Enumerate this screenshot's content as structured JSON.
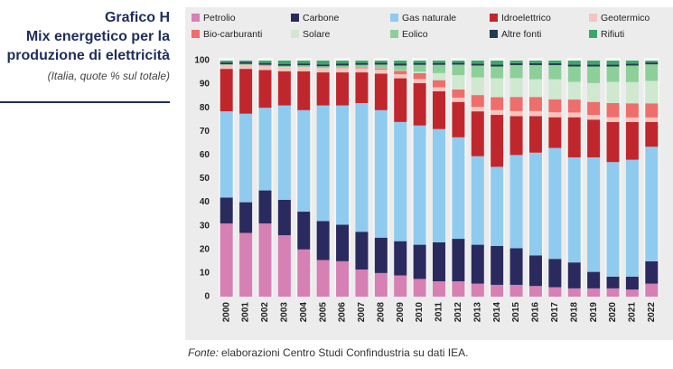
{
  "chart_data": {
    "type": "stacked_bar",
    "label": "Grafico H",
    "title": [
      "Mix energetico per la",
      "produzione di elettricità"
    ],
    "subtitle": "(Italia, quote % sul totale)",
    "source_label": "Fonte:",
    "source": "elaborazioni Centro Studi Confindustria su dati IEA.",
    "categories": [
      "2000",
      "2001",
      "2002",
      "2003",
      "2004",
      "2005",
      "2006",
      "2007",
      "2008",
      "2009",
      "2010",
      "2011",
      "2012",
      "2013",
      "2014",
      "2015",
      "2016",
      "2017",
      "2018",
      "2019",
      "2020",
      "2021",
      "2022"
    ],
    "ylim": [
      0,
      100
    ],
    "yticks": [
      0,
      10,
      20,
      30,
      40,
      50,
      60,
      70,
      80,
      90,
      100
    ],
    "series": [
      {
        "name": "Petrolio",
        "color": "#d680b4",
        "values": [
          31,
          27,
          31,
          26,
          20,
          15.5,
          15,
          11.5,
          10,
          9,
          7.5,
          6.5,
          6.5,
          5.5,
          5,
          5,
          4.5,
          4,
          3.5,
          3.5,
          3.5,
          3,
          5.5
        ]
      },
      {
        "name": "Carbone",
        "color": "#2b2a5e",
        "values": [
          11,
          13,
          14,
          15,
          16,
          16.5,
          15.5,
          16,
          15,
          14.5,
          14.5,
          16.5,
          18,
          16.5,
          16.5,
          15.5,
          13,
          12,
          11,
          7,
          5,
          5.5,
          9.5
        ]
      },
      {
        "name": "Gas naturale",
        "color": "#8fcbee",
        "values": [
          36.5,
          37.5,
          35,
          40,
          43,
          49,
          50.5,
          54.5,
          54,
          50.5,
          50.5,
          48,
          43,
          37.5,
          33.5,
          39.5,
          43.5,
          47,
          44.5,
          48.5,
          48.5,
          49.5,
          48.5
        ]
      },
      {
        "name": "Idroelettrico",
        "color": "#c0272d",
        "values": [
          18,
          19,
          16,
          14.5,
          16.5,
          14,
          14,
          13,
          15.5,
          18.5,
          18,
          16,
          15,
          19,
          22,
          16.5,
          15.5,
          13,
          17,
          16,
          17,
          16,
          10.5
        ]
      },
      {
        "name": "Geotermico",
        "color": "#f6c4bf",
        "values": [
          1.7,
          1.7,
          1.7,
          1.8,
          1.8,
          1.8,
          1.8,
          1.7,
          1.7,
          1.7,
          1.7,
          1.7,
          1.8,
          1.9,
          2,
          2.1,
          2.1,
          2.1,
          2,
          2,
          2,
          1.9,
          1.9
        ]
      },
      {
        "name": "Bio-carburanti",
        "color": "#ee6e6b",
        "values": [
          0,
          0,
          0,
          0,
          0,
          0,
          0.1,
          0.2,
          0.5,
          1.5,
          2.5,
          3,
          3.5,
          5,
          5.5,
          6,
          6,
          5.5,
          5.5,
          5.5,
          6,
          6,
          6
        ]
      },
      {
        "name": "Solare",
        "color": "#cfe8cf",
        "values": [
          0,
          0,
          0,
          0,
          0,
          0,
          0,
          0,
          0.1,
          0.2,
          0.6,
          3,
          6,
          7.5,
          8,
          8,
          7.5,
          8.5,
          7.5,
          8,
          9,
          9,
          9.5
        ]
      },
      {
        "name": "Eolico",
        "color": "#8dcf99",
        "values": [
          0.2,
          0.4,
          0.5,
          0.5,
          0.7,
          0.8,
          1,
          1.3,
          1.5,
          2,
          2.9,
          3.5,
          4.5,
          5,
          5,
          5.5,
          6,
          6,
          6.5,
          7,
          6.5,
          7,
          7
        ]
      },
      {
        "name": "Altre fonti",
        "color": "#223c4f",
        "values": [
          0.8,
          0.8,
          0.8,
          0.8,
          0.8,
          0.8,
          0.9,
          0.8,
          0.8,
          0.9,
          0.8,
          0.8,
          0.8,
          0.8,
          0.8,
          0.8,
          0.8,
          0.8,
          0.8,
          0.8,
          0.8,
          0.8,
          0.8
        ]
      },
      {
        "name": "Rifiuti",
        "color": "#3aa86c",
        "values": [
          0.8,
          0.6,
          1,
          1.4,
          1.2,
          1.6,
          1.2,
          1,
          0.9,
          1.2,
          1,
          1,
          0.9,
          1.3,
          1.7,
          1.1,
          1.1,
          1.1,
          1.7,
          1.7,
          1.7,
          1.3,
          0.8
        ]
      }
    ]
  }
}
